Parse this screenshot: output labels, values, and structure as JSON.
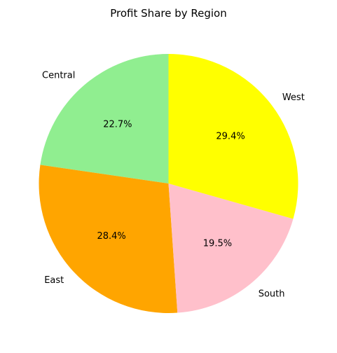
{
  "chart_data": {
    "type": "pie",
    "title": "Profit Share by Region",
    "start_angle_deg": 90,
    "direction": "counterclockwise",
    "slices": [
      {
        "label": "Central",
        "value": 22.7,
        "pct_label": "22.7%",
        "color": "#90EE90"
      },
      {
        "label": "East",
        "value": 28.4,
        "pct_label": "28.4%",
        "color": "#FFA500"
      },
      {
        "label": "South",
        "value": 19.5,
        "pct_label": "19.5%",
        "color": "#FFC0CB"
      },
      {
        "label": "West",
        "value": 29.4,
        "pct_label": "29.4%",
        "color": "#FFFF00"
      }
    ]
  }
}
